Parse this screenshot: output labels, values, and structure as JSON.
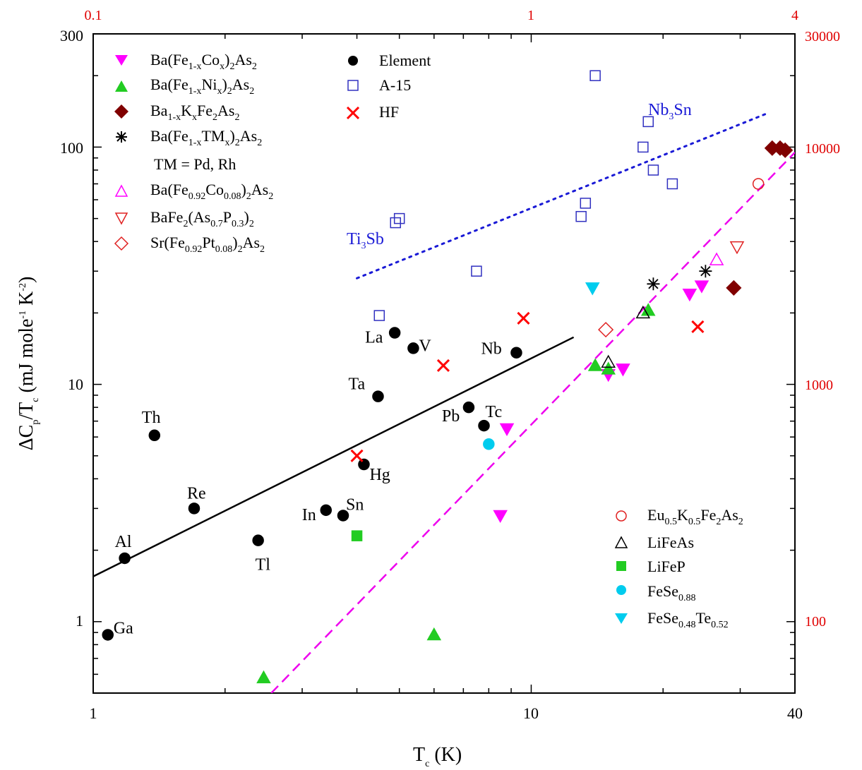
{
  "chart_data": {
    "type": "scatter",
    "title": "",
    "xlabel": "Tc (K)",
    "ylabel": "ΔCp/Tc (mJ mole-1 K-2)",
    "xscale": "log",
    "yscale": "log",
    "xlim": [
      1,
      40
    ],
    "ylim": [
      0.5,
      300
    ],
    "x_ticks": [
      "1",
      "10",
      "40"
    ],
    "y_ticks": [
      "1",
      "10",
      "100",
      "300"
    ],
    "top_axis_ticks": [
      "0.1",
      "1",
      "4"
    ],
    "right_axis_ticks": [
      "100",
      "1000",
      "10000",
      "30000"
    ],
    "series": [
      {
        "name": "Ba(Fe1-xCox)2As2",
        "marker": "triangle-down",
        "color": "#ff00ff",
        "filled": true,
        "points": [
          [
            8.8,
            6.5
          ],
          [
            8.5,
            2.8
          ],
          [
            15.0,
            11.0
          ],
          [
            16.2,
            11.6
          ],
          [
            23.0,
            24.0
          ],
          [
            24.5,
            26.0
          ]
        ]
      },
      {
        "name": "Ba(Fe1-xNix)2As2",
        "marker": "triangle-up",
        "color": "#22cc22",
        "filled": true,
        "points": [
          [
            2.45,
            0.58
          ],
          [
            6.0,
            0.88
          ],
          [
            14.0,
            12.0
          ],
          [
            15.0,
            11.6
          ],
          [
            18.5,
            20.5
          ]
        ]
      },
      {
        "name": "Ba1-xKxFe2As2",
        "marker": "diamond",
        "color": "#800000",
        "filled": true,
        "points": [
          [
            29.0,
            25.5
          ],
          [
            35.5,
            99.0
          ],
          [
            37.0,
            99.0
          ],
          [
            38.0,
            97.0
          ]
        ]
      },
      {
        "name": "Ba(Fe1-xTMx)2As2 TM = Pd, Rh",
        "marker": "asterisk",
        "color": "#000000",
        "filled": false,
        "points": [
          [
            19.0,
            26.5
          ],
          [
            25.0,
            30.0
          ]
        ]
      },
      {
        "name": "Ba(Fe0.92Co0.08)2As2",
        "marker": "triangle-up",
        "color": "#ff00ff",
        "filled": false,
        "points": [
          [
            26.5,
            33.5
          ]
        ]
      },
      {
        "name": "BaFe2(As0.7P0.3)2",
        "marker": "triangle-down",
        "color": "#e02020",
        "filled": false,
        "points": [
          [
            29.5,
            38.0
          ]
        ]
      },
      {
        "name": "Sr(Fe0.92Pt0.08)2As2",
        "marker": "diamond",
        "color": "#e02020",
        "filled": false,
        "points": [
          [
            14.8,
            17.0
          ]
        ]
      },
      {
        "name": "Element",
        "marker": "circle",
        "color": "#000000",
        "filled": true,
        "points": [
          [
            1.08,
            0.88
          ],
          [
            1.18,
            1.85
          ],
          [
            1.38,
            6.1
          ],
          [
            1.7,
            3.0
          ],
          [
            2.38,
            2.2
          ],
          [
            3.4,
            2.95
          ],
          [
            3.72,
            2.8
          ],
          [
            4.15,
            4.6
          ],
          [
            4.47,
            8.9
          ],
          [
            4.88,
            16.5
          ],
          [
            5.38,
            14.2
          ],
          [
            7.2,
            8.0
          ],
          [
            7.8,
            6.7
          ],
          [
            9.25,
            13.6
          ]
        ]
      },
      {
        "name": "A-15",
        "marker": "square",
        "color": "#3030c0",
        "filled": false,
        "points": [
          [
            4.5,
            19.5
          ],
          [
            4.9,
            48.0
          ],
          [
            5.0,
            50.0
          ],
          [
            7.5,
            30.0
          ],
          [
            13.0,
            51.0
          ],
          [
            13.3,
            58.0
          ],
          [
            14.0,
            200.0
          ],
          [
            18.0,
            100.0
          ],
          [
            18.5,
            128.0
          ],
          [
            19.0,
            80.0
          ],
          [
            21.0,
            70.0
          ]
        ]
      },
      {
        "name": "HF",
        "marker": "cross",
        "color": "#ff0000",
        "filled": false,
        "points": [
          [
            4.0,
            5.0
          ],
          [
            6.3,
            12.0
          ],
          [
            9.6,
            19.0
          ],
          [
            24.0,
            17.5
          ]
        ]
      },
      {
        "name": "Eu0.5K0.5Fe2As2",
        "marker": "circle",
        "color": "#e02020",
        "filled": false,
        "points": [
          [
            33.0,
            70.0
          ]
        ]
      },
      {
        "name": "LiFeAs",
        "marker": "triangle-up",
        "color": "#000000",
        "filled": false,
        "points": [
          [
            15.0,
            12.4
          ],
          [
            18.0,
            20.0
          ]
        ]
      },
      {
        "name": "LiFeP",
        "marker": "square",
        "color": "#22cc22",
        "filled": true,
        "points": [
          [
            4.0,
            2.3
          ]
        ]
      },
      {
        "name": "FeSe0.88",
        "marker": "circle",
        "color": "#00ccee",
        "filled": true,
        "points": [
          [
            8.0,
            5.6
          ]
        ]
      },
      {
        "name": "FeSe0.48Te0.52",
        "marker": "triangle-down",
        "color": "#00ccee",
        "filled": true,
        "points": [
          [
            13.8,
            25.5
          ]
        ]
      }
    ],
    "lines": [
      {
        "label": "",
        "style": "solid",
        "color": "#000000",
        "points": [
          [
            1.0,
            1.55
          ],
          [
            12.5,
            15.8
          ]
        ]
      },
      {
        "label": "",
        "style": "dashed",
        "color": "#ee00ee",
        "points": [
          [
            2.55,
            0.5
          ],
          [
            40.0,
            95.0
          ]
        ]
      },
      {
        "label": "",
        "style": "dotted",
        "color": "#1a1ad6",
        "points": [
          [
            4.0,
            28.0
          ],
          [
            35.0,
            140.0
          ]
        ]
      }
    ],
    "point_labels": [
      {
        "text": "Ga",
        "x": 1.08,
        "y": 0.88
      },
      {
        "text": "Al",
        "x": 1.18,
        "y": 1.85
      },
      {
        "text": "Th",
        "x": 1.38,
        "y": 6.1
      },
      {
        "text": "Re",
        "x": 1.7,
        "y": 3.0
      },
      {
        "text": "Tl",
        "x": 2.38,
        "y": 2.2
      },
      {
        "text": "In",
        "x": 3.4,
        "y": 2.95
      },
      {
        "text": "Sn",
        "x": 3.72,
        "y": 2.8
      },
      {
        "text": "Hg",
        "x": 4.15,
        "y": 4.6
      },
      {
        "text": "Ta",
        "x": 4.47,
        "y": 8.9
      },
      {
        "text": "La",
        "x": 4.88,
        "y": 16.5
      },
      {
        "text": "V",
        "x": 5.38,
        "y": 14.2
      },
      {
        "text": "Pb",
        "x": 7.2,
        "y": 8.0
      },
      {
        "text": "Tc",
        "x": 7.8,
        "y": 6.7
      },
      {
        "text": "Nb",
        "x": 9.25,
        "y": 13.6
      }
    ],
    "line_labels": [
      {
        "text": "Nb3Sn",
        "x": 28.0,
        "y": 125.0
      },
      {
        "text": "Ti3Sb",
        "x": 4.5,
        "y": 38.0
      }
    ],
    "legend": [
      {
        "placement": "top-left",
        "items": [
          "Ba(Fe1-xCox)2As2",
          "Ba(Fe1-xNix)2As2",
          "Ba1-xKxFe2As2",
          "Ba(Fe1-xTMx)2As2",
          "TM = Pd, Rh",
          "Ba(Fe0.92Co0.08)2As2",
          "BaFe2(As0.7P0.3)2",
          "Sr(Fe0.92Pt0.08)2As2"
        ]
      },
      {
        "placement": "top-center",
        "items": [
          "Element",
          "A-15",
          "HF"
        ]
      },
      {
        "placement": "bottom-right",
        "items": [
          "Eu0.5K0.5Fe2As2",
          "LiFeAs",
          "LiFeP",
          "FeSe0.88",
          "FeSe0.48Te0.52"
        ]
      }
    ]
  }
}
